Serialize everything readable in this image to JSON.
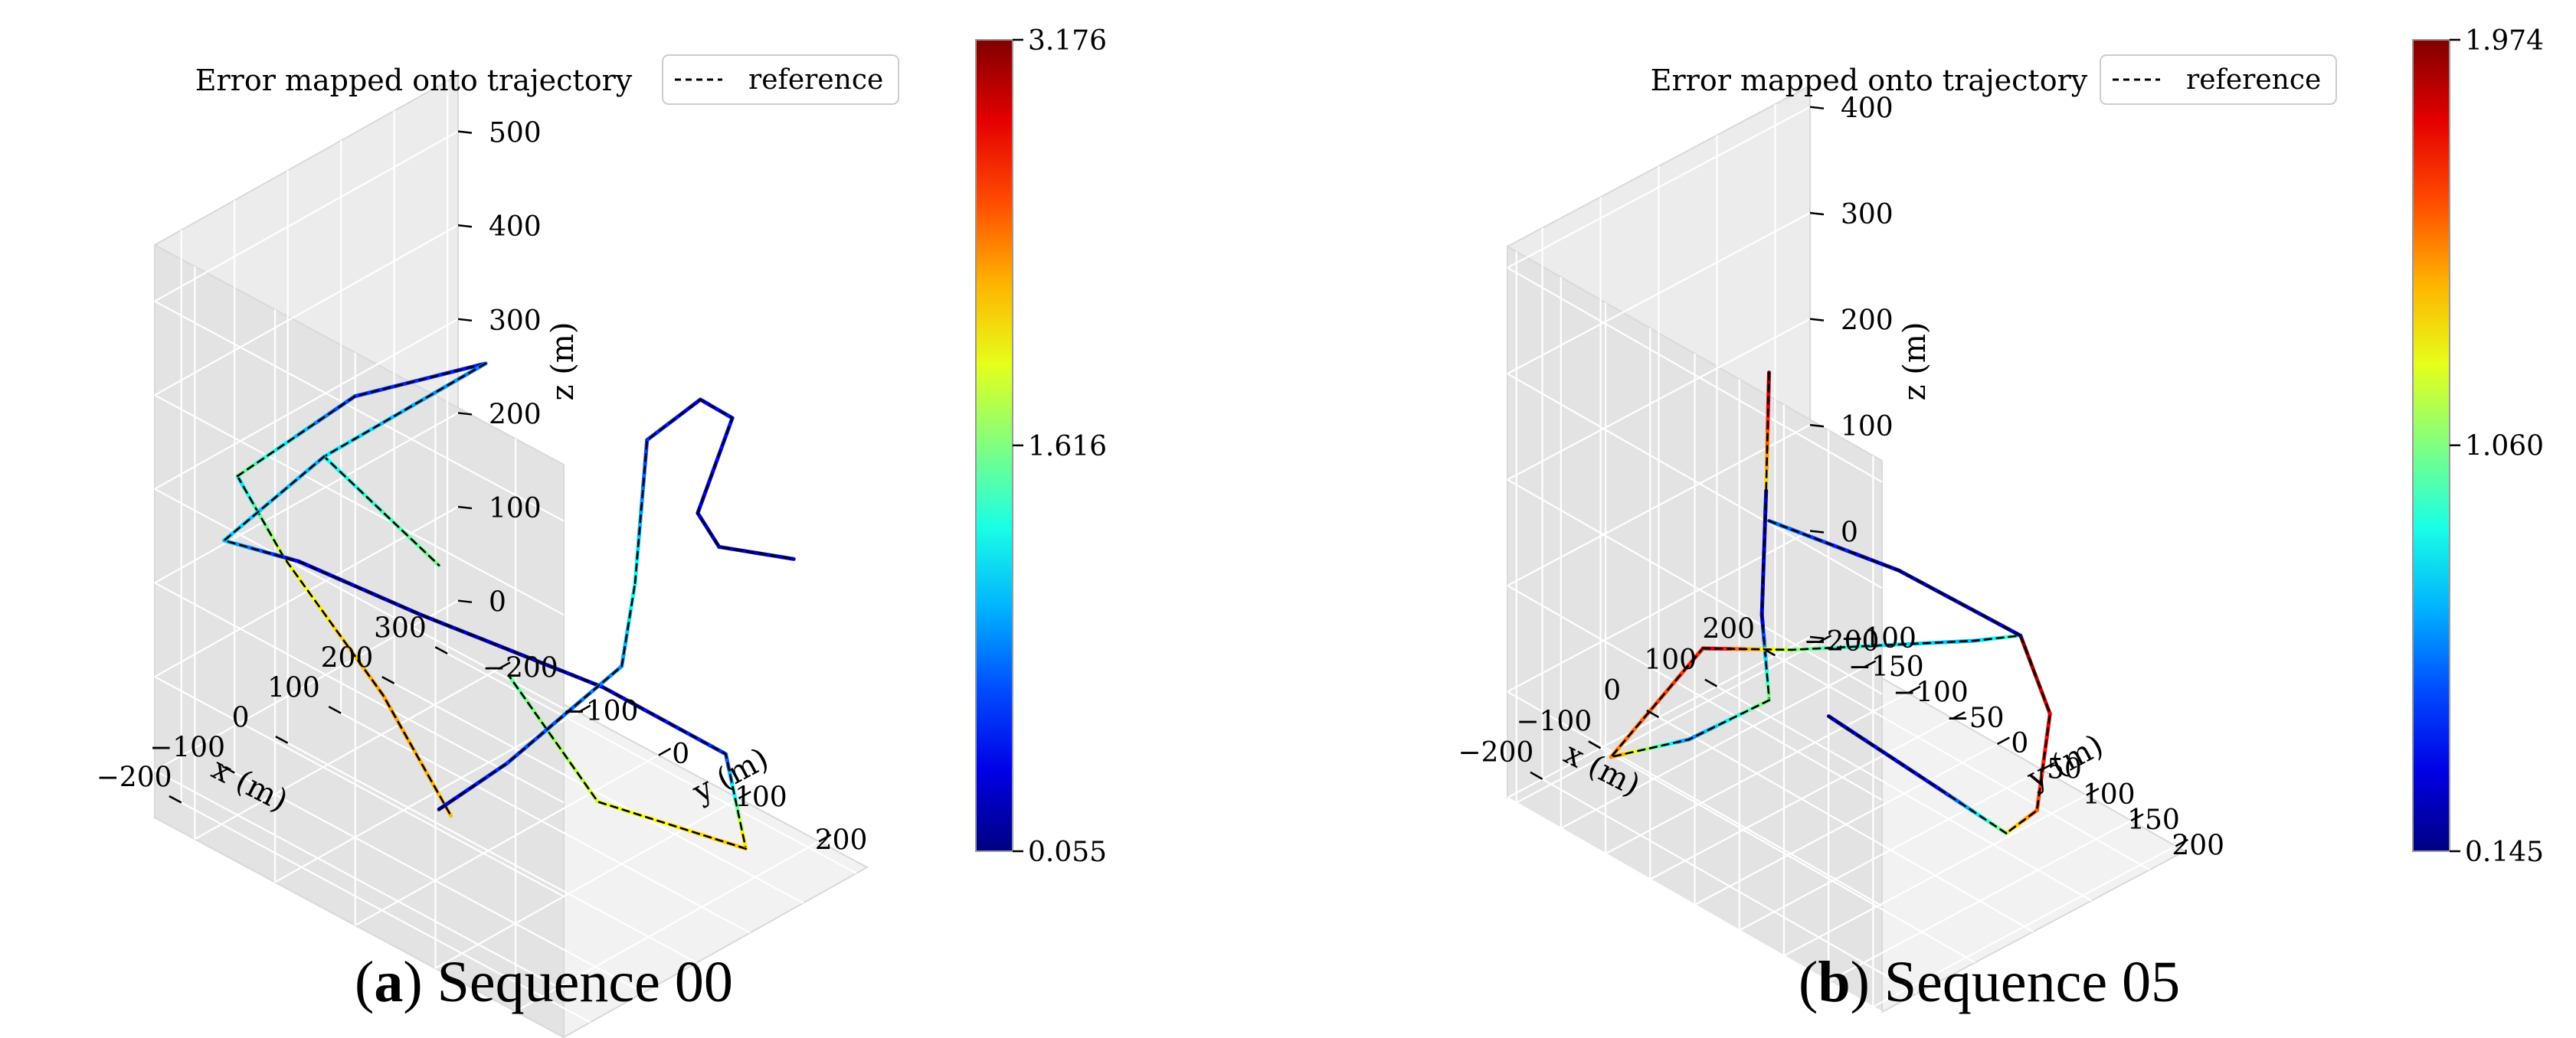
{
  "chart_data": [
    {
      "type": "3d-line",
      "title": "Error mapped onto trajectory",
      "legend": {
        "entries": [
          "reference"
        ],
        "placement": "top-right",
        "style": "black dashed"
      },
      "xlabel": "x (m)",
      "ylabel": "y (m)",
      "zlabel": "z (m)",
      "xticks": [
        "−200",
        "−100",
        "0",
        "100",
        "200",
        "300"
      ],
      "yticks": [
        "−200",
        "−100",
        "0",
        "100",
        "200"
      ],
      "zticks": [
        "0",
        "100",
        "200",
        "300",
        "400",
        "500"
      ],
      "xlim": [
        -250,
        320
      ],
      "ylim": [
        -250,
        260
      ],
      "zlim": [
        -50,
        560
      ],
      "colorbar": {
        "min": 0.055,
        "mid": 1.616,
        "max": 3.176,
        "labels": [
          "3.176",
          "1.616",
          "0.055"
        ],
        "colormap": "jet"
      },
      "series": [
        {
          "x": [
            -200,
            -120,
            -55,
            -55
          ],
          "y": [
            -180,
            -175,
            -95,
            -10
          ],
          "z": [
            330,
            220,
            90,
            0
          ],
          "error": [
            1.1,
            1.9,
            2.3,
            2.2
          ]
        },
        {
          "x": [
            -200,
            -100,
            -20
          ],
          "y": [
            -180,
            -100,
            10
          ],
          "z": [
            330,
            420,
            480
          ],
          "error": [
            1.6,
            0.6,
            0.5
          ]
        },
        {
          "x": [
            -20,
            -135,
            -55
          ],
          "y": [
            10,
            -115,
            -25
          ],
          "z": [
            480,
            360,
            260
          ],
          "error": [
            0.8,
            1.2,
            1.6
          ]
        },
        {
          "x": [
            -135,
            -210,
            -145,
            -60,
            80,
            175,
            160
          ],
          "y": [
            -115,
            -190,
            -140,
            -45,
            90,
            180,
            215
          ],
          "z": [
            360,
            260,
            240,
            200,
            140,
            80,
            0
          ],
          "error": [
            1.0,
            1.1,
            0.4,
            0.3,
            0.35,
            0.6,
            2.2
          ]
        },
        {
          "x": [
            160,
            40,
            -20
          ],
          "y": [
            215,
            110,
            40
          ],
          "z": [
            0,
            40,
            160
          ],
          "error": [
            2.2,
            1.9,
            1.5
          ]
        },
        {
          "x": [
            -55,
            -10,
            85,
            95
          ],
          "y": [
            -25,
            30,
            110,
            120
          ],
          "z": [
            0,
            60,
            170,
            260
          ],
          "error": [
            0.4,
            0.6,
            0.9,
            1.3
          ]
        },
        {
          "x": [
            95,
            110,
            180,
            210,
            160,
            170,
            250
          ],
          "y": [
            120,
            125,
            145,
            165,
            155,
            175,
            215
          ],
          "z": [
            260,
            410,
            440,
            420,
            330,
            300,
            280
          ],
          "error": [
            1.3,
            0.6,
            0.4,
            0.5,
            0.4,
            0.3,
            0.3
          ]
        }
      ]
    },
    {
      "type": "3d-line",
      "title": "Error mapped onto trajectory",
      "legend": {
        "entries": [
          "reference"
        ],
        "placement": "top-right",
        "style": "black dashed"
      },
      "xlabel": "x (m)",
      "ylabel": "y (m)",
      "zlabel": "z (m)",
      "xticks": [
        "−200",
        "−100",
        "0",
        "100",
        "200"
      ],
      "yticks": [
        "−200",
        "−150",
        "−100",
        "−50",
        "0",
        "50",
        "100",
        "150",
        "200"
      ],
      "zticks": [
        "−100",
        "0",
        "100",
        "200",
        "300",
        "400"
      ],
      "xlim": [
        -260,
        260
      ],
      "ylim": [
        -210,
        210
      ],
      "zlim": [
        -100,
        420
      ],
      "colorbar": {
        "min": 0.145,
        "mid": 1.06,
        "max": 1.974,
        "labels": [
          "1.974",
          "1.060",
          "0.145"
        ],
        "colormap": "jet"
      },
      "series": [
        {
          "x": [
            -25,
            -30
          ],
          "y": [
            -70,
            -70
          ],
          "z": [
            300,
            190
          ],
          "error": [
            1.97,
            1.3
          ]
        },
        {
          "x": [
            -30,
            -45,
            -40
          ],
          "y": [
            -70,
            -65,
            -60
          ],
          "z": [
            190,
            80,
            0
          ],
          "error": [
            0.3,
            0.3,
            1.1
          ]
        },
        {
          "x": [
            -40,
            -140,
            -220,
            -200
          ],
          "y": [
            -60,
            -85,
            -120,
            -30
          ],
          "z": [
            0,
            -20,
            -30,
            110
          ],
          "error": [
            1.1,
            0.6,
            1.5,
            1.7
          ]
        },
        {
          "x": [
            -200,
            -140,
            -60,
            20,
            70
          ],
          "y": [
            -30,
            30,
            80,
            130,
            150
          ],
          "z": [
            110,
            120,
            125,
            130,
            130
          ],
          "error": [
            1.9,
            1.1,
            0.8,
            0.7,
            1.0
          ]
        },
        {
          "x": [
            70,
            90,
            60,
            30
          ],
          "y": [
            150,
            170,
            175,
            160
          ],
          "z": [
            130,
            60,
            -20,
            -40
          ],
          "error": [
            1.97,
            1.8,
            1.6,
            1.3
          ]
        },
        {
          "x": [
            30,
            -10,
            -45
          ],
          "y": [
            160,
            110,
            10
          ],
          "z": [
            -40,
            -10,
            20
          ],
          "error": [
            1.1,
            0.4,
            0.3
          ]
        },
        {
          "x": [
            -25,
            30,
            70
          ],
          "y": [
            -70,
            40,
            150
          ],
          "z": [
            160,
            150,
            130
          ],
          "error": [
            0.6,
            0.3,
            0.3
          ]
        }
      ]
    }
  ],
  "captions": [
    {
      "letter": "a",
      "text": "Sequence 00"
    },
    {
      "letter": "b",
      "text": "Sequence 05"
    }
  ]
}
